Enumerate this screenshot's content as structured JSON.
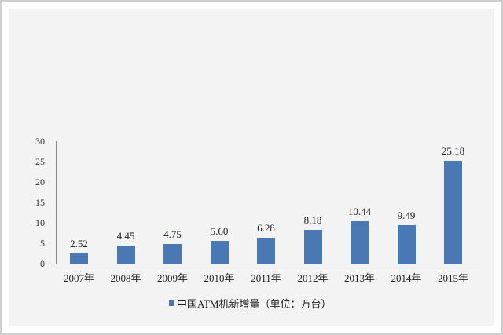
{
  "chart_data": {
    "type": "bar",
    "title": "",
    "xlabel": "",
    "ylabel": "",
    "categories": [
      "2007年",
      "2008年",
      "2009年",
      "2010年",
      "2011年",
      "2012年",
      "2013年",
      "2014年",
      "2015年"
    ],
    "series": [
      {
        "name": "中国ATM机新增量（单位：万台）",
        "color": "#4a78b4",
        "values": [
          2.52,
          4.45,
          4.75,
          5.6,
          6.28,
          8.18,
          10.44,
          9.49,
          25.18
        ],
        "labels": [
          "2.52",
          "4.45",
          "4.75",
          "5.60",
          "6.28",
          "8.18",
          "10.44",
          "9.49",
          "25.18"
        ]
      }
    ],
    "yticks": [
      "0",
      "5",
      "10",
      "15",
      "20",
      "25",
      "30"
    ],
    "ylim": [
      0,
      30
    ],
    "grid": false,
    "legend_position": "bottom"
  },
  "legend": {
    "label": "中国ATM机新增量（单位：万台）"
  },
  "colors": {
    "bar": "#4a78b4",
    "panel": "#f3f3f3",
    "border": "#cfcfcf",
    "axis": "#8c8c8c"
  }
}
